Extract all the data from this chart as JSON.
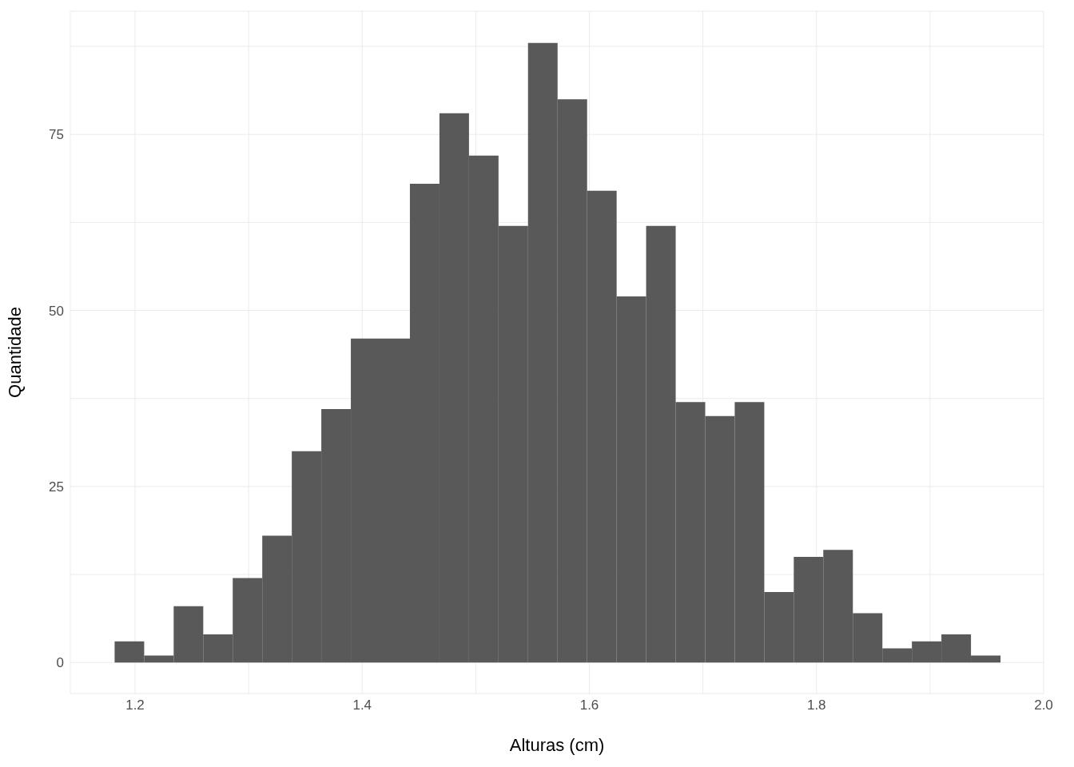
{
  "chart_data": {
    "type": "histogram",
    "xlabel": "Alturas (cm)",
    "ylabel": "Quantidade",
    "color": "#595959",
    "bins": [
      1.182,
      1.208,
      1.234,
      1.26,
      1.286,
      1.312,
      1.338,
      1.364,
      1.39,
      1.416,
      1.442,
      1.468,
      1.494,
      1.52,
      1.546,
      1.572,
      1.598,
      1.624,
      1.65,
      1.676,
      1.702,
      1.728,
      1.754,
      1.78,
      1.806,
      1.832,
      1.858,
      1.884,
      1.91,
      1.936,
      1.962
    ],
    "values": [
      3,
      1,
      8,
      4,
      12,
      18,
      30,
      36,
      46,
      46,
      68,
      78,
      72,
      62,
      88,
      80,
      67,
      52,
      62,
      37,
      35,
      37,
      10,
      15,
      16,
      7,
      2,
      3,
      4,
      1
    ],
    "xlim": [
      1.143,
      2.0
    ],
    "xticks": [
      1.2,
      {
        "value": 1.3,
        "label": null
      },
      1.4,
      {
        "value": 1.5,
        "label": null
      },
      1.6,
      {
        "value": 1.7,
        "label": null
      },
      1.8,
      {
        "value": 1.9,
        "label": null
      },
      {
        "value": 2.0,
        "label": "2.0"
      }
    ],
    "ylim": [
      -4.4,
      92.5
    ],
    "yticks": [
      0,
      {
        "value": 12.5,
        "label": null
      },
      25,
      {
        "value": 37.5,
        "label": null
      },
      50,
      {
        "value": 62.5,
        "label": null
      },
      75,
      {
        "value": 87.5,
        "label": null
      }
    ],
    "grid": true
  }
}
